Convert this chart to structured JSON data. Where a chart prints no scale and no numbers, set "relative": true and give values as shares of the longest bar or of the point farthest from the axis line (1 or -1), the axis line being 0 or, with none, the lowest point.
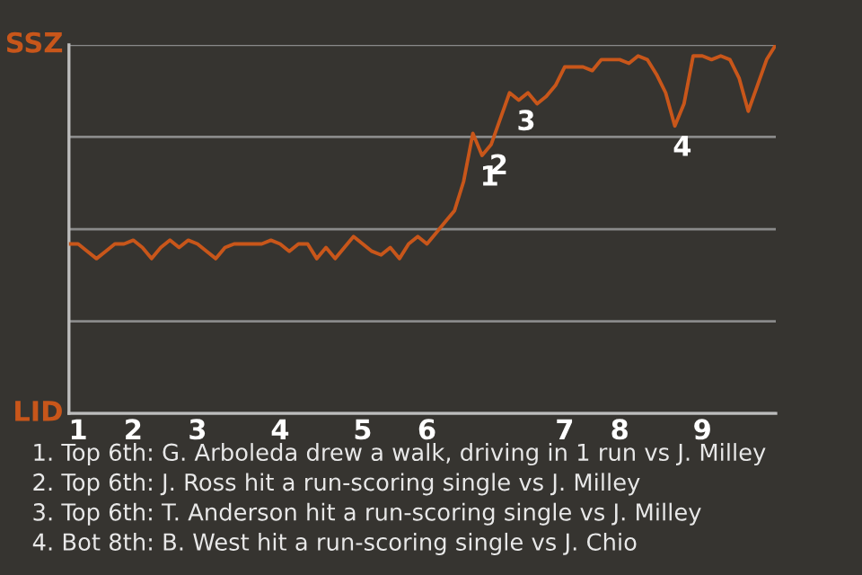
{
  "chart_data": {
    "type": "line",
    "relative": true,
    "categories": [
      null,
      "1",
      null,
      null,
      null,
      null,
      null,
      "2",
      null,
      null,
      null,
      null,
      null,
      null,
      "3",
      null,
      null,
      null,
      null,
      null,
      null,
      null,
      null,
      "4",
      null,
      null,
      null,
      null,
      null,
      null,
      null,
      null,
      "5",
      null,
      null,
      null,
      null,
      null,
      null,
      "6",
      null,
      null,
      null,
      null,
      null,
      null,
      null,
      null,
      null,
      null,
      null,
      null,
      null,
      null,
      "7",
      null,
      null,
      null,
      null,
      null,
      "8",
      null,
      null,
      null,
      null,
      null,
      null,
      null,
      null,
      "9",
      null,
      null,
      null,
      null,
      null,
      null,
      null,
      null
    ],
    "series": [
      {
        "color": "#c8561a",
        "values": [
          0.46,
          0.46,
          0.44,
          0.42,
          0.44,
          0.46,
          0.46,
          0.47,
          0.45,
          0.42,
          0.45,
          0.47,
          0.45,
          0.47,
          0.46,
          0.44,
          0.42,
          0.45,
          0.46,
          0.46,
          0.46,
          0.46,
          0.47,
          0.46,
          0.44,
          0.46,
          0.46,
          0.42,
          0.45,
          0.42,
          0.45,
          0.48,
          0.46,
          0.44,
          0.43,
          0.45,
          0.42,
          0.46,
          0.48,
          0.46,
          0.49,
          0.52,
          0.55,
          0.63,
          0.76,
          0.7,
          0.73,
          0.8,
          0.87,
          0.85,
          0.87,
          0.84,
          0.86,
          0.89,
          0.94,
          0.94,
          0.94,
          0.93,
          0.96,
          0.96,
          0.96,
          0.95,
          0.97,
          0.96,
          0.92,
          0.87,
          0.78,
          0.84,
          0.97,
          0.97,
          0.96,
          0.97,
          0.96,
          0.91,
          0.82,
          0.89,
          0.96,
          1.0
        ]
      }
    ],
    "grid": "y",
    "annotations": [
      {
        "text": "1",
        "y": 0.7
      },
      {
        "text": "2",
        "y": 0.73
      },
      {
        "text": "3",
        "y": 0.85
      },
      {
        "text": "4",
        "y": 0.78
      },
      "SSZ",
      "LID",
      "1. Top 6th: G. Arboleda drew a walk, driving in 1 run vs J. Milley",
      "2. Top 6th: J. Ross hit a run-scoring single vs J. Milley",
      "3. Top 6th: T. Anderson hit a run-scoring single vs J. Milley",
      "4. Bot 8th: B. West hit a run-scoring single vs J. Chio"
    ]
  }
}
